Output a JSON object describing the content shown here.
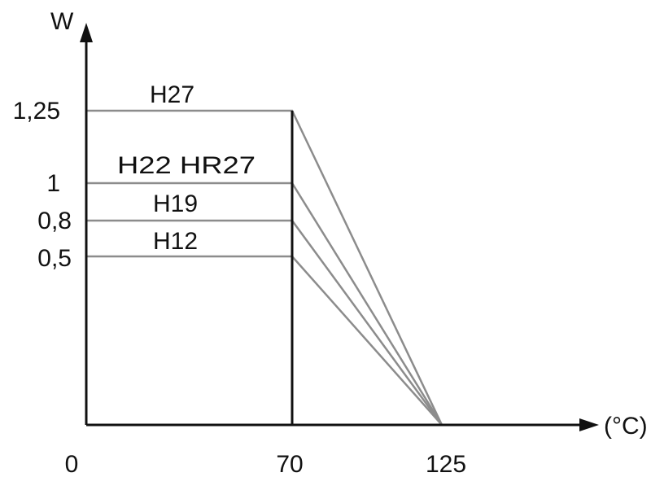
{
  "chart_data": {
    "type": "line",
    "xlabel": "(°C)",
    "ylabel": "W",
    "x_ticks": [
      "0",
      "70",
      "125"
    ],
    "y_ticks": [
      "1,25",
      "1",
      "0,8",
      "0,5"
    ],
    "xlim": [
      0,
      200
    ],
    "ylim": [
      0,
      1.3
    ],
    "grid": false,
    "legend": "none",
    "series": [
      {
        "name": "H27",
        "x": [
          0,
          70,
          125
        ],
        "y": [
          1.25,
          1.25,
          0
        ]
      },
      {
        "name": "H22 HR27",
        "x": [
          0,
          70,
          125
        ],
        "y": [
          1,
          1,
          0
        ]
      },
      {
        "name": "H19",
        "x": [
          0,
          70,
          125
        ],
        "y": [
          0.8,
          0.8,
          0
        ]
      },
      {
        "name": "H12",
        "x": [
          0,
          70,
          125
        ],
        "y": [
          0.5,
          0.5,
          0
        ]
      }
    ],
    "colors": {
      "axis": "#111111",
      "series_line": "#8c8c8c",
      "marker_line": "#111111"
    }
  }
}
